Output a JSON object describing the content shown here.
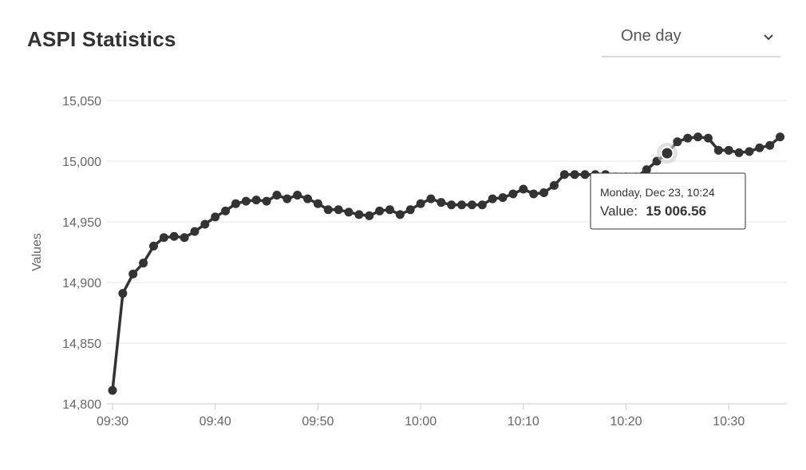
{
  "header": {
    "title": "ASPI Statistics"
  },
  "range_select": {
    "selected": "One day"
  },
  "tooltip": {
    "date": "Monday, Dec 23, 10:24",
    "value_label": "Value:",
    "value": "15 006.56"
  },
  "chart_data": {
    "type": "line",
    "title": "ASPI Statistics",
    "ylabel": "Values",
    "xlabel": "",
    "ylim": [
      14800,
      15050
    ],
    "y_ticks": [
      14800,
      14850,
      14900,
      14950,
      15000,
      15050
    ],
    "y_tick_labels": [
      "14,800",
      "14,850",
      "14,900",
      "14,950",
      "15,000",
      "15,050"
    ],
    "x_tick_labels": [
      "09:30",
      "09:40",
      "09:50",
      "10:00",
      "10:10",
      "10:20",
      "10:30"
    ],
    "x_start": "09:30",
    "grid": true,
    "line_color": "#333333",
    "highlighted_index": 54,
    "series": [
      {
        "x": [
          "09:30",
          "09:31",
          "09:32",
          "09:33",
          "09:34",
          "09:35",
          "09:36",
          "09:37",
          "09:38",
          "09:39",
          "09:40",
          "09:41",
          "09:42",
          "09:43",
          "09:44",
          "09:45",
          "09:46",
          "09:47",
          "09:48",
          "09:49",
          "09:50",
          "09:51",
          "09:52",
          "09:53",
          "09:54",
          "09:55",
          "09:56",
          "09:57",
          "09:58",
          "09:59",
          "10:00",
          "10:01",
          "10:02",
          "10:03",
          "10:04",
          "10:05",
          "10:06",
          "10:07",
          "10:08",
          "10:09",
          "10:10",
          "10:11",
          "10:12",
          "10:13",
          "10:14",
          "10:15",
          "10:16",
          "10:17",
          "10:18",
          "10:19",
          "10:20",
          "10:21",
          "10:22",
          "10:23",
          "10:24",
          "10:25",
          "10:26",
          "10:27",
          "10:28",
          "10:29",
          "10:30",
          "10:31",
          "10:32",
          "10:33",
          "10:34",
          "10:35"
        ],
        "values": [
          14811,
          14891,
          14907,
          14916,
          14930,
          14937,
          14938,
          14937,
          14942,
          14948,
          14954,
          14959,
          14965,
          14967,
          14968,
          14967,
          14972,
          14969,
          14972,
          14969,
          14965,
          14960,
          14960,
          14958,
          14956,
          14955,
          14959,
          14960,
          14956,
          14960,
          14965,
          14969,
          14966,
          14964,
          14964,
          14964,
          14964,
          14969,
          14970,
          14973,
          14977,
          14973,
          14974,
          14980,
          14989,
          14989,
          14989,
          14989,
          14989,
          14987,
          14987,
          14987,
          14993,
          15000,
          15006.56,
          15016,
          15019,
          15020,
          15019,
          15009,
          15009,
          15007,
          15008,
          15011,
          15013,
          15020
        ]
      }
    ]
  }
}
